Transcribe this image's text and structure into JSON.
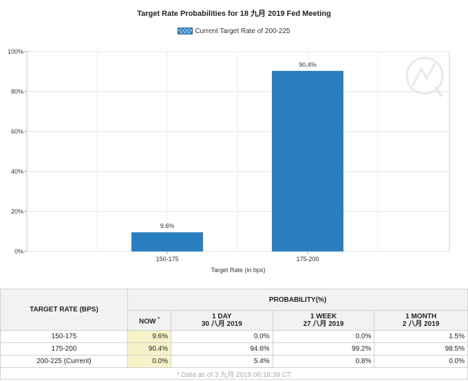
{
  "chart_data": {
    "type": "bar",
    "title": "Target Rate Probabilities for 18 九月 2019  Fed Meeting",
    "legend": "Current Target Rate of 200-225",
    "legend_position": "top-center",
    "categories": [
      "150-175",
      "175-200"
    ],
    "values": [
      9.6,
      90.4
    ],
    "data_labels": [
      "9.6%",
      "90.4%"
    ],
    "xlabel": "Target Rate (in bps)",
    "ylabel": "",
    "ylim": [
      0,
      100
    ],
    "yticks": [
      "0%",
      "20%",
      "40%",
      "60%",
      "80%",
      "100%"
    ],
    "grid": true,
    "bar_color": "#2a7fc0"
  },
  "table": {
    "header_target": "TARGET RATE (BPS)",
    "header_probability": "PROBABILITY(%)",
    "col_now": "NOW",
    "col_now_mark": "*",
    "col_1day": "1 DAY",
    "col_1day_date": "30 八月 2019",
    "col_1week": "1 WEEK",
    "col_1week_date": "27 八月 2019",
    "col_1month": "1 MONTH",
    "col_1month_date": "2 八月 2019",
    "rows": [
      {
        "rate": "150-175",
        "now": "9.6%",
        "day": "0.0%",
        "week": "0.0%",
        "month": "1.5%"
      },
      {
        "rate": "175-200",
        "now": "90.4%",
        "day": "94.6%",
        "week": "99.2%",
        "month": "98.5%"
      },
      {
        "rate": "200-225 (Current)",
        "now": "0.0%",
        "day": "5.4%",
        "week": "0.8%",
        "month": "0.0%"
      }
    ],
    "footnote": "* Data as of 3 九月 2019 06:18:39 CT"
  }
}
